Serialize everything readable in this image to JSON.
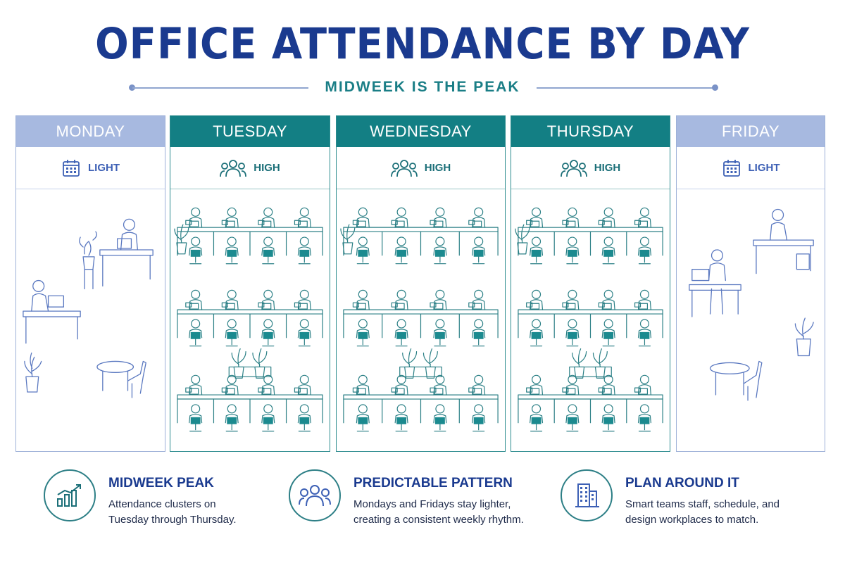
{
  "header": {
    "title": "OFFICE ATTENDANCE BY DAY",
    "subtitle": "MIDWEEK IS THE PEAK"
  },
  "days": [
    {
      "name": "MONDAY",
      "level": "LIGHT",
      "icon": "calendar-icon"
    },
    {
      "name": "TUESDAY",
      "level": "HIGH",
      "icon": "people-group-icon"
    },
    {
      "name": "WEDNESDAY",
      "level": "HIGH",
      "icon": "people-group-icon"
    },
    {
      "name": "THURSDAY",
      "level": "HIGH",
      "icon": "people-group-icon"
    },
    {
      "name": "FRIDAY",
      "level": "LIGHT",
      "icon": "calendar-icon"
    }
  ],
  "features": [
    {
      "title": "MIDWEEK PEAK",
      "line1": "Attendance clusters on",
      "line2": "Tuesday through Thursday.",
      "icon": "bar-chart-up-icon"
    },
    {
      "title": "PREDICTABLE PATTERN",
      "line1": "Mondays and Fridays stay lighter,",
      "line2": "creating a consistent weekly rhythm.",
      "icon": "people-group-icon"
    },
    {
      "title": "PLAN AROUND IT",
      "line1": "Smart teams staff, schedule, and",
      "line2": "design workplaces to match.",
      "icon": "office-building-icon"
    }
  ],
  "colors": {
    "title_blue": "#1a3a8f",
    "teal": "#137f84",
    "light_header": "#a7b9e0",
    "light_blue_line": "#5a78c0"
  }
}
